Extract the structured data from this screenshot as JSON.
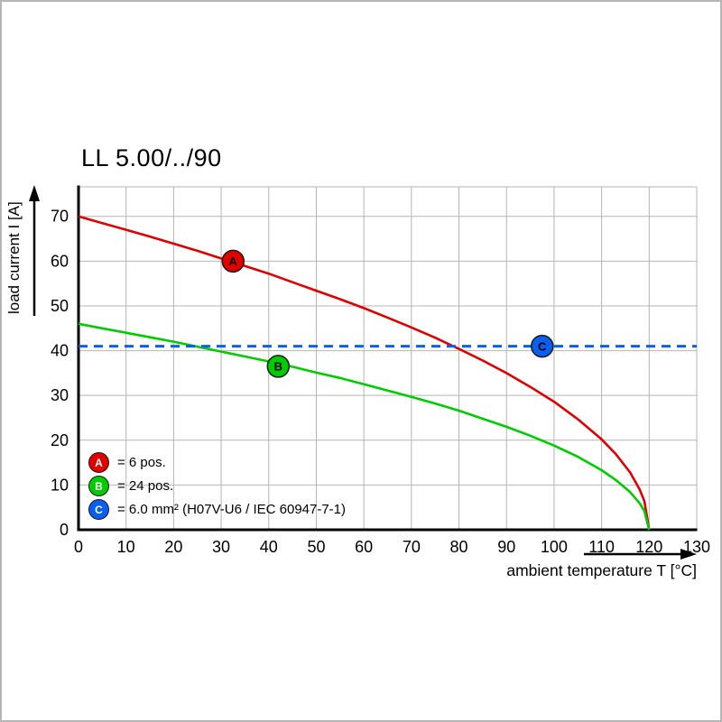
{
  "title": "LL 5.00/../90",
  "chart_data": {
    "type": "line",
    "xlabel": "ambient temperature T [°C]",
    "ylabel": "load current I [A]",
    "xlim": [
      0,
      130
    ],
    "ylim": [
      0,
      76.6
    ],
    "x_ticks": [
      0,
      10,
      20,
      30,
      40,
      50,
      60,
      70,
      80,
      90,
      100,
      110,
      120,
      130
    ],
    "y_ticks": [
      0,
      10,
      20,
      30,
      40,
      50,
      60,
      70
    ],
    "grid": true,
    "legend_position": "inside-bottom-left",
    "colors": {
      "grid": "#b4b4b4",
      "axis": "#000000"
    },
    "series": [
      {
        "name": "A",
        "label": "= 6 pos.",
        "color": "#e10000",
        "dashed": false,
        "marker": {
          "x": 32.5,
          "y": 60
        },
        "points": [
          [
            0,
            70
          ],
          [
            5,
            68.5
          ],
          [
            10,
            67.0
          ],
          [
            15,
            65.5
          ],
          [
            20,
            63.9
          ],
          [
            25,
            62.3
          ],
          [
            30,
            60.6
          ],
          [
            35,
            58.9
          ],
          [
            40,
            57.2
          ],
          [
            45,
            55.3
          ],
          [
            50,
            53.4
          ],
          [
            55,
            51.5
          ],
          [
            60,
            49.5
          ],
          [
            65,
            47.4
          ],
          [
            70,
            45.2
          ],
          [
            75,
            42.9
          ],
          [
            80,
            40.4
          ],
          [
            85,
            37.8
          ],
          [
            90,
            35.0
          ],
          [
            95,
            31.9
          ],
          [
            100,
            28.6
          ],
          [
            105,
            24.7
          ],
          [
            110,
            20.2
          ],
          [
            113,
            16.9
          ],
          [
            116,
            12.8
          ],
          [
            118,
            9.0
          ],
          [
            119,
            6.4
          ],
          [
            120,
            0
          ]
        ]
      },
      {
        "name": "B",
        "label": "= 24 pos.",
        "color": "#00cd00",
        "dashed": false,
        "marker": {
          "x": 42,
          "y": 36.5
        },
        "points": [
          [
            0,
            46
          ],
          [
            5,
            45.0
          ],
          [
            10,
            44.0
          ],
          [
            15,
            43.0
          ],
          [
            20,
            42.0
          ],
          [
            25,
            40.9
          ],
          [
            30,
            39.8
          ],
          [
            35,
            38.7
          ],
          [
            40,
            37.6
          ],
          [
            45,
            36.4
          ],
          [
            50,
            35.1
          ],
          [
            55,
            33.9
          ],
          [
            60,
            32.5
          ],
          [
            65,
            31.1
          ],
          [
            70,
            29.7
          ],
          [
            75,
            28.2
          ],
          [
            80,
            26.6
          ],
          [
            85,
            24.8
          ],
          [
            90,
            23.0
          ],
          [
            95,
            21.0
          ],
          [
            100,
            18.8
          ],
          [
            105,
            16.3
          ],
          [
            110,
            13.3
          ],
          [
            113,
            11.1
          ],
          [
            116,
            8.4
          ],
          [
            118,
            5.9
          ],
          [
            119,
            4.2
          ],
          [
            120,
            0
          ]
        ]
      },
      {
        "name": "C",
        "label": "= 6.0 mm² (H07V-U6 / IEC 60947-7-1)",
        "color": "#0a5ff0",
        "dashed": true,
        "marker": {
          "x": 97.5,
          "y": 41
        },
        "points": [
          [
            0,
            41
          ],
          [
            130,
            41
          ]
        ]
      }
    ]
  }
}
